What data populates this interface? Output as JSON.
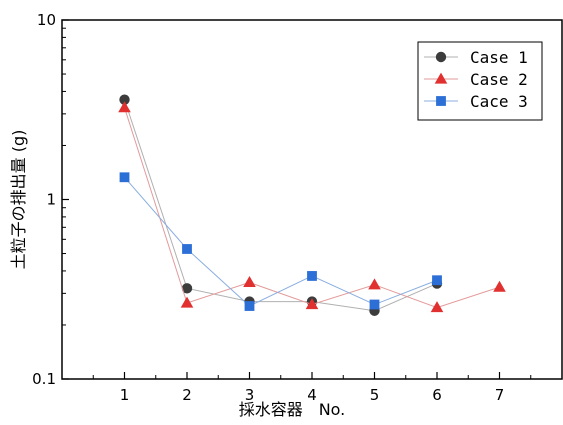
{
  "chart_data": {
    "type": "line",
    "xlabel": "採水容器　No.",
    "ylabel": "土粒子の排出量 (g)",
    "x_ticks": [
      "1",
      "2",
      "3",
      "4",
      "5",
      "6",
      "7"
    ],
    "y_ticks": [
      "0.1",
      "1",
      "10"
    ],
    "x_range": [
      0,
      8
    ],
    "y_range": [
      0.1,
      10
    ],
    "y_scale": "log",
    "grid": false,
    "legend_position": "top-right",
    "series": [
      {
        "name": "Case 1",
        "marker": "circle",
        "color": "#3c3c3c",
        "line_color": "#b0b0b0",
        "x": [
          1,
          2,
          3,
          4,
          5,
          6
        ],
        "y": [
          3.6,
          0.32,
          0.27,
          0.27,
          0.24,
          0.34
        ]
      },
      {
        "name": "Case 2",
        "marker": "triangle",
        "color": "#e03030",
        "line_color": "#e39a9a",
        "x": [
          1,
          2,
          3,
          4,
          5,
          6,
          7
        ],
        "y": [
          3.25,
          0.265,
          0.345,
          0.26,
          0.335,
          0.25,
          0.325
        ]
      },
      {
        "name": "Cace 3",
        "marker": "square",
        "color": "#2c6fd6",
        "line_color": "#8aaee0",
        "x": [
          1,
          2,
          3,
          4,
          5,
          6
        ],
        "y": [
          1.33,
          0.53,
          0.255,
          0.375,
          0.26,
          0.355
        ]
      }
    ]
  }
}
